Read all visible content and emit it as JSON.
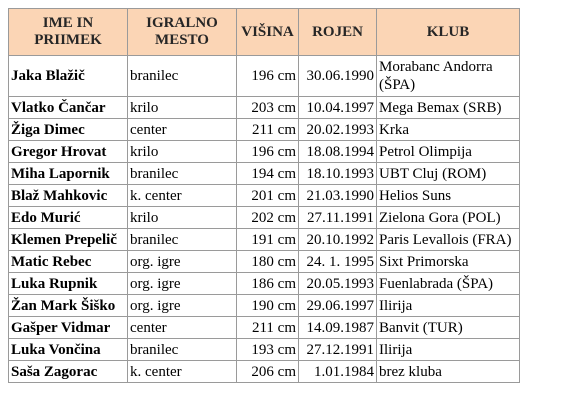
{
  "table": {
    "headers": {
      "name": "IME IN PRIIMEK",
      "position": "IGRALNO MESTO",
      "height": "VIŠINA",
      "born": "ROJEN",
      "club": "KLUB"
    },
    "rows": [
      {
        "name": "Jaka Blažič",
        "position": "branilec",
        "height": "196 cm",
        "born": "30.06.1990",
        "club": "Morabanc Andorra (ŠPA)"
      },
      {
        "name": "Vlatko Čančar",
        "position": "krilo",
        "height": "203 cm",
        "born": "10.04.1997",
        "club": "Mega Bemax (SRB)"
      },
      {
        "name": "Žiga Dimec",
        "position": "center",
        "height": "211 cm",
        "born": "20.02.1993",
        "club": "Krka"
      },
      {
        "name": "Gregor Hrovat",
        "position": "krilo",
        "height": "196 cm",
        "born": "18.08.1994",
        "club": "Petrol Olimpija"
      },
      {
        "name": "Miha Lapornik",
        "position": "branilec",
        "height": "194 cm",
        "born": "18.10.1993",
        "club": "UBT Cluj (ROM)"
      },
      {
        "name": "Blaž Mahkovic",
        "position": "k. center",
        "height": "201 cm",
        "born": "21.03.1990",
        "club": "Helios Suns"
      },
      {
        "name": "Edo Murić",
        "position": "krilo",
        "height": "202 cm",
        "born": "27.11.1991",
        "club": "Zielona Gora (POL)"
      },
      {
        "name": "Klemen Prepelič",
        "position": "branilec",
        "height": "191 cm",
        "born": "20.10.1992",
        "club": "Paris Levallois (FRA)"
      },
      {
        "name": "Matic Rebec",
        "position": "org. igre",
        "height": "180 cm",
        "born": "24. 1. 1995",
        "club": "Sixt Primorska"
      },
      {
        "name": "Luka Rupnik",
        "position": "org. igre",
        "height": "186 cm",
        "born": "20.05.1993",
        "club": "Fuenlabrada (ŠPA)"
      },
      {
        "name": "Žan Mark Šiško",
        "position": "org. igre",
        "height": "190 cm",
        "born": "29.06.1997",
        "club": "Ilirija"
      },
      {
        "name": "Gašper Vidmar",
        "position": "center",
        "height": "211 cm",
        "born": "14.09.1987",
        "club": "Banvit (TUR)"
      },
      {
        "name": "Luka Vončina",
        "position": "branilec",
        "height": "193 cm",
        "born": "27.12.1991",
        "club": "Ilirija"
      },
      {
        "name": "Saša Zagorac",
        "position": "k. center",
        "height": "206 cm",
        "born": "1.01.1984",
        "club": "brez kluba"
      }
    ]
  }
}
